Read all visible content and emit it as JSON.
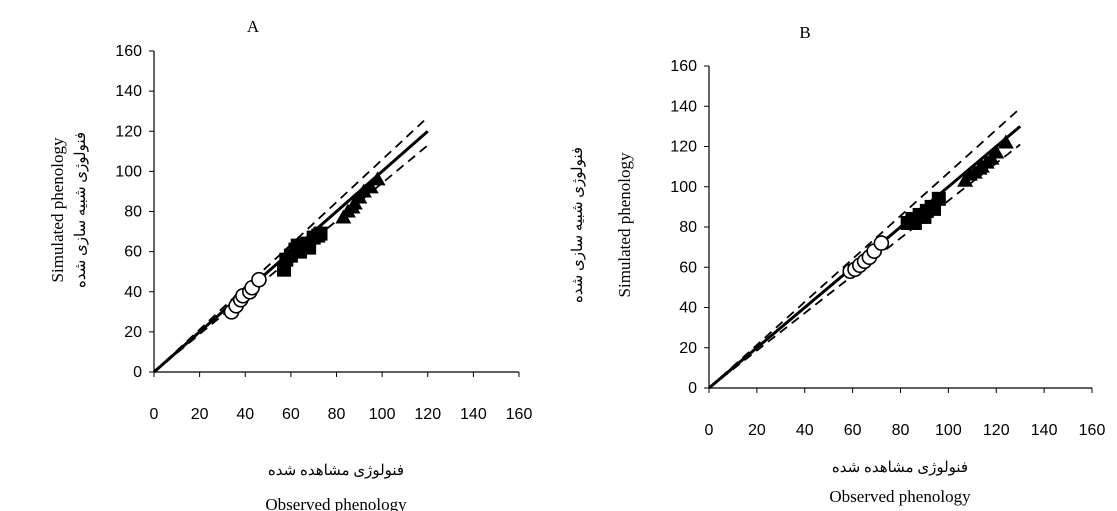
{
  "chart_data": [
    {
      "type": "scatter",
      "title": "A",
      "xlabel_fa": "فنولوژی مشاهده شده",
      "xlabel": "Observed phenology",
      "ylabel_fa": "فنولوژی شبیه سازی شده",
      "ylabel": "Simulated phenology",
      "xlim": [
        0,
        160
      ],
      "ylim": [
        0,
        160
      ],
      "x_ticks": [
        0,
        20,
        40,
        60,
        80,
        100,
        120,
        140,
        160
      ],
      "y_ticks": [
        0,
        20,
        40,
        60,
        80,
        100,
        120,
        140,
        160
      ],
      "grid": false,
      "legend": "none",
      "lines": [
        {
          "style": "solid",
          "from": [
            0,
            0
          ],
          "to": [
            120,
            120
          ]
        },
        {
          "style": "dashed",
          "from": [
            0,
            0
          ],
          "to": [
            120,
            127
          ]
        },
        {
          "style": "dashed",
          "from": [
            0,
            0
          ],
          "to": [
            120,
            113
          ]
        }
      ],
      "series": [
        {
          "marker": "circle-open",
          "points": [
            [
              34,
              30
            ],
            [
              36,
              33
            ],
            [
              38,
              36
            ],
            [
              39,
              38
            ],
            [
              42,
              40
            ],
            [
              43,
              42
            ],
            [
              46,
              46
            ]
          ]
        },
        {
          "marker": "square",
          "points": [
            [
              57,
              51
            ],
            [
              58,
              56
            ],
            [
              60,
              58
            ],
            [
              62,
              61
            ],
            [
              63,
              63
            ],
            [
              64,
              60
            ],
            [
              66,
              64
            ],
            [
              68,
              62
            ],
            [
              70,
              67
            ],
            [
              72,
              68
            ],
            [
              73,
              69
            ]
          ]
        },
        {
          "marker": "triangle",
          "points": [
            [
              83,
              77
            ],
            [
              85,
              80
            ],
            [
              87,
              82
            ],
            [
              88,
              84
            ],
            [
              90,
              87
            ],
            [
              92,
              90
            ],
            [
              95,
              92
            ],
            [
              98,
              96
            ]
          ]
        }
      ]
    },
    {
      "type": "scatter",
      "title": "B",
      "xlabel_fa": "فنولوژی مشاهده شده",
      "xlabel": "Observed phenology",
      "ylabel_fa": "فنولوژی شبیه سازی شده",
      "ylabel": "Simulated phenology",
      "xlim": [
        0,
        160
      ],
      "ylim": [
        0,
        160
      ],
      "x_ticks": [
        0,
        20,
        40,
        60,
        80,
        100,
        120,
        140,
        160
      ],
      "y_ticks": [
        0,
        20,
        40,
        60,
        80,
        100,
        120,
        140,
        160
      ],
      "grid": false,
      "legend": "none",
      "lines": [
        {
          "style": "solid",
          "from": [
            0,
            0
          ],
          "to": [
            130,
            130
          ]
        },
        {
          "style": "dashed",
          "from": [
            0,
            0
          ],
          "to": [
            130,
            139
          ]
        },
        {
          "style": "dashed",
          "from": [
            0,
            0
          ],
          "to": [
            130,
            121
          ]
        }
      ],
      "series": [
        {
          "marker": "circle-open",
          "points": [
            [
              59,
              58
            ],
            [
              61,
              59
            ],
            [
              63,
              61
            ],
            [
              65,
              63
            ],
            [
              67,
              65
            ],
            [
              69,
              68
            ],
            [
              72,
              72
            ]
          ]
        },
        {
          "marker": "square",
          "points": [
            [
              83,
              82
            ],
            [
              85,
              84
            ],
            [
              86,
              82
            ],
            [
              88,
              86
            ],
            [
              90,
              85
            ],
            [
              91,
              88
            ],
            [
              93,
              90
            ],
            [
              94,
              89
            ],
            [
              96,
              94
            ]
          ]
        },
        {
          "marker": "triangle",
          "points": [
            [
              107,
              103
            ],
            [
              109,
              106
            ],
            [
              111,
              107
            ],
            [
              113,
              109
            ],
            [
              114,
              110
            ],
            [
              116,
              112
            ],
            [
              118,
              114
            ],
            [
              120,
              117
            ],
            [
              124,
              122
            ]
          ]
        }
      ]
    }
  ]
}
